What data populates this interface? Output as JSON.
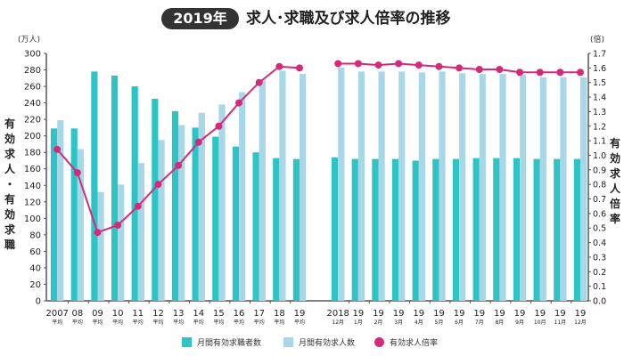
{
  "header": {
    "badge": "2019年",
    "title": "求人･求職及び求人倍率の推移"
  },
  "axes": {
    "left_unit": "(万人)",
    "right_unit": "(倍)",
    "left_label": [
      "有",
      "効",
      "求",
      "人",
      "・",
      "有",
      "効",
      "求",
      "職"
    ],
    "right_label": [
      "有",
      "効",
      "求",
      "人",
      "倍",
      "率"
    ]
  },
  "legend": [
    {
      "label": "月間有効求職者数",
      "color": "#2ec4c6"
    },
    {
      "label": "月間有効求人数",
      "color": "#a8d8e8"
    },
    {
      "label": "有効求人倍率",
      "color": "#d42a7a"
    }
  ],
  "chart_data": {
    "type": "bar+line",
    "title": "求人･求職及び求人倍率の推移",
    "ylabel": "有効求人・有効求職",
    "y2label": "有効求人倍率",
    "ylim": [
      0,
      300
    ],
    "y2lim": [
      0,
      1.7
    ],
    "yticks": [
      "0",
      "20",
      "40",
      "60",
      "80",
      "100",
      "120",
      "140",
      "160",
      "180",
      "200",
      "220",
      "240",
      "260",
      "280",
      "300"
    ],
    "y2ticks": [
      "0.0",
      "0.1",
      "0.2",
      "0.3",
      "0.4",
      "0.5",
      "0.6",
      "0.7",
      "0.8",
      "0.9",
      "1.0",
      "1.1",
      "1.2",
      "1.3",
      "1.4",
      "1.5",
      "1.6",
      "1.7"
    ],
    "groups": [
      {
        "categories": [
          {
            "top": "2007",
            "bottom": "平均"
          },
          {
            "top": "08",
            "bottom": "平均"
          },
          {
            "top": "09",
            "bottom": "平均"
          },
          {
            "top": "10",
            "bottom": "平均"
          },
          {
            "top": "11",
            "bottom": "平均"
          },
          {
            "top": "12",
            "bottom": "平均"
          },
          {
            "top": "13",
            "bottom": "平均"
          },
          {
            "top": "14",
            "bottom": "平均"
          },
          {
            "top": "15",
            "bottom": "平均"
          },
          {
            "top": "16",
            "bottom": "平均"
          },
          {
            "top": "17",
            "bottom": "平均"
          },
          {
            "top": "18",
            "bottom": "平均"
          },
          {
            "top": "19",
            "bottom": "平均"
          }
        ],
        "seekers": [
          209,
          209,
          278,
          273,
          260,
          245,
          230,
          210,
          199,
          187,
          180,
          173,
          172
        ],
        "openings": [
          219,
          184,
          132,
          141,
          167,
          195,
          213,
          228,
          238,
          253,
          268,
          279,
          275
        ],
        "ratio": [
          1.04,
          0.88,
          0.47,
          0.52,
          0.65,
          0.8,
          0.93,
          1.09,
          1.2,
          1.36,
          1.5,
          1.61,
          1.6
        ]
      },
      {
        "categories": [
          {
            "top": "2018",
            "bottom": "12月"
          },
          {
            "top": "19",
            "bottom": "1月"
          },
          {
            "top": "19",
            "bottom": "2月"
          },
          {
            "top": "19",
            "bottom": "3月"
          },
          {
            "top": "19",
            "bottom": "4月"
          },
          {
            "top": "19",
            "bottom": "5月"
          },
          {
            "top": "19",
            "bottom": "6月"
          },
          {
            "top": "19",
            "bottom": "7月"
          },
          {
            "top": "19",
            "bottom": "8月"
          },
          {
            "top": "19",
            "bottom": "9月"
          },
          {
            "top": "19",
            "bottom": "10月"
          },
          {
            "top": "19",
            "bottom": "11月"
          },
          {
            "top": "19",
            "bottom": "12月"
          }
        ],
        "seekers": [
          174,
          172,
          172,
          172,
          170,
          172,
          172,
          173,
          173,
          173,
          172,
          172,
          172
        ],
        "openings": [
          283,
          278,
          278,
          278,
          277,
          278,
          276,
          275,
          275,
          274,
          271,
          271,
          271
        ],
        "ratio": [
          1.63,
          1.63,
          1.62,
          1.63,
          1.62,
          1.61,
          1.6,
          1.59,
          1.59,
          1.57,
          1.57,
          1.57,
          1.57
        ]
      }
    ],
    "series": [
      {
        "name": "月間有効求職者数",
        "type": "bar",
        "axis": "left"
      },
      {
        "name": "月間有効求人数",
        "type": "bar",
        "axis": "left"
      },
      {
        "name": "有効求人倍率",
        "type": "line",
        "axis": "right"
      }
    ],
    "legend_position": "bottom"
  }
}
